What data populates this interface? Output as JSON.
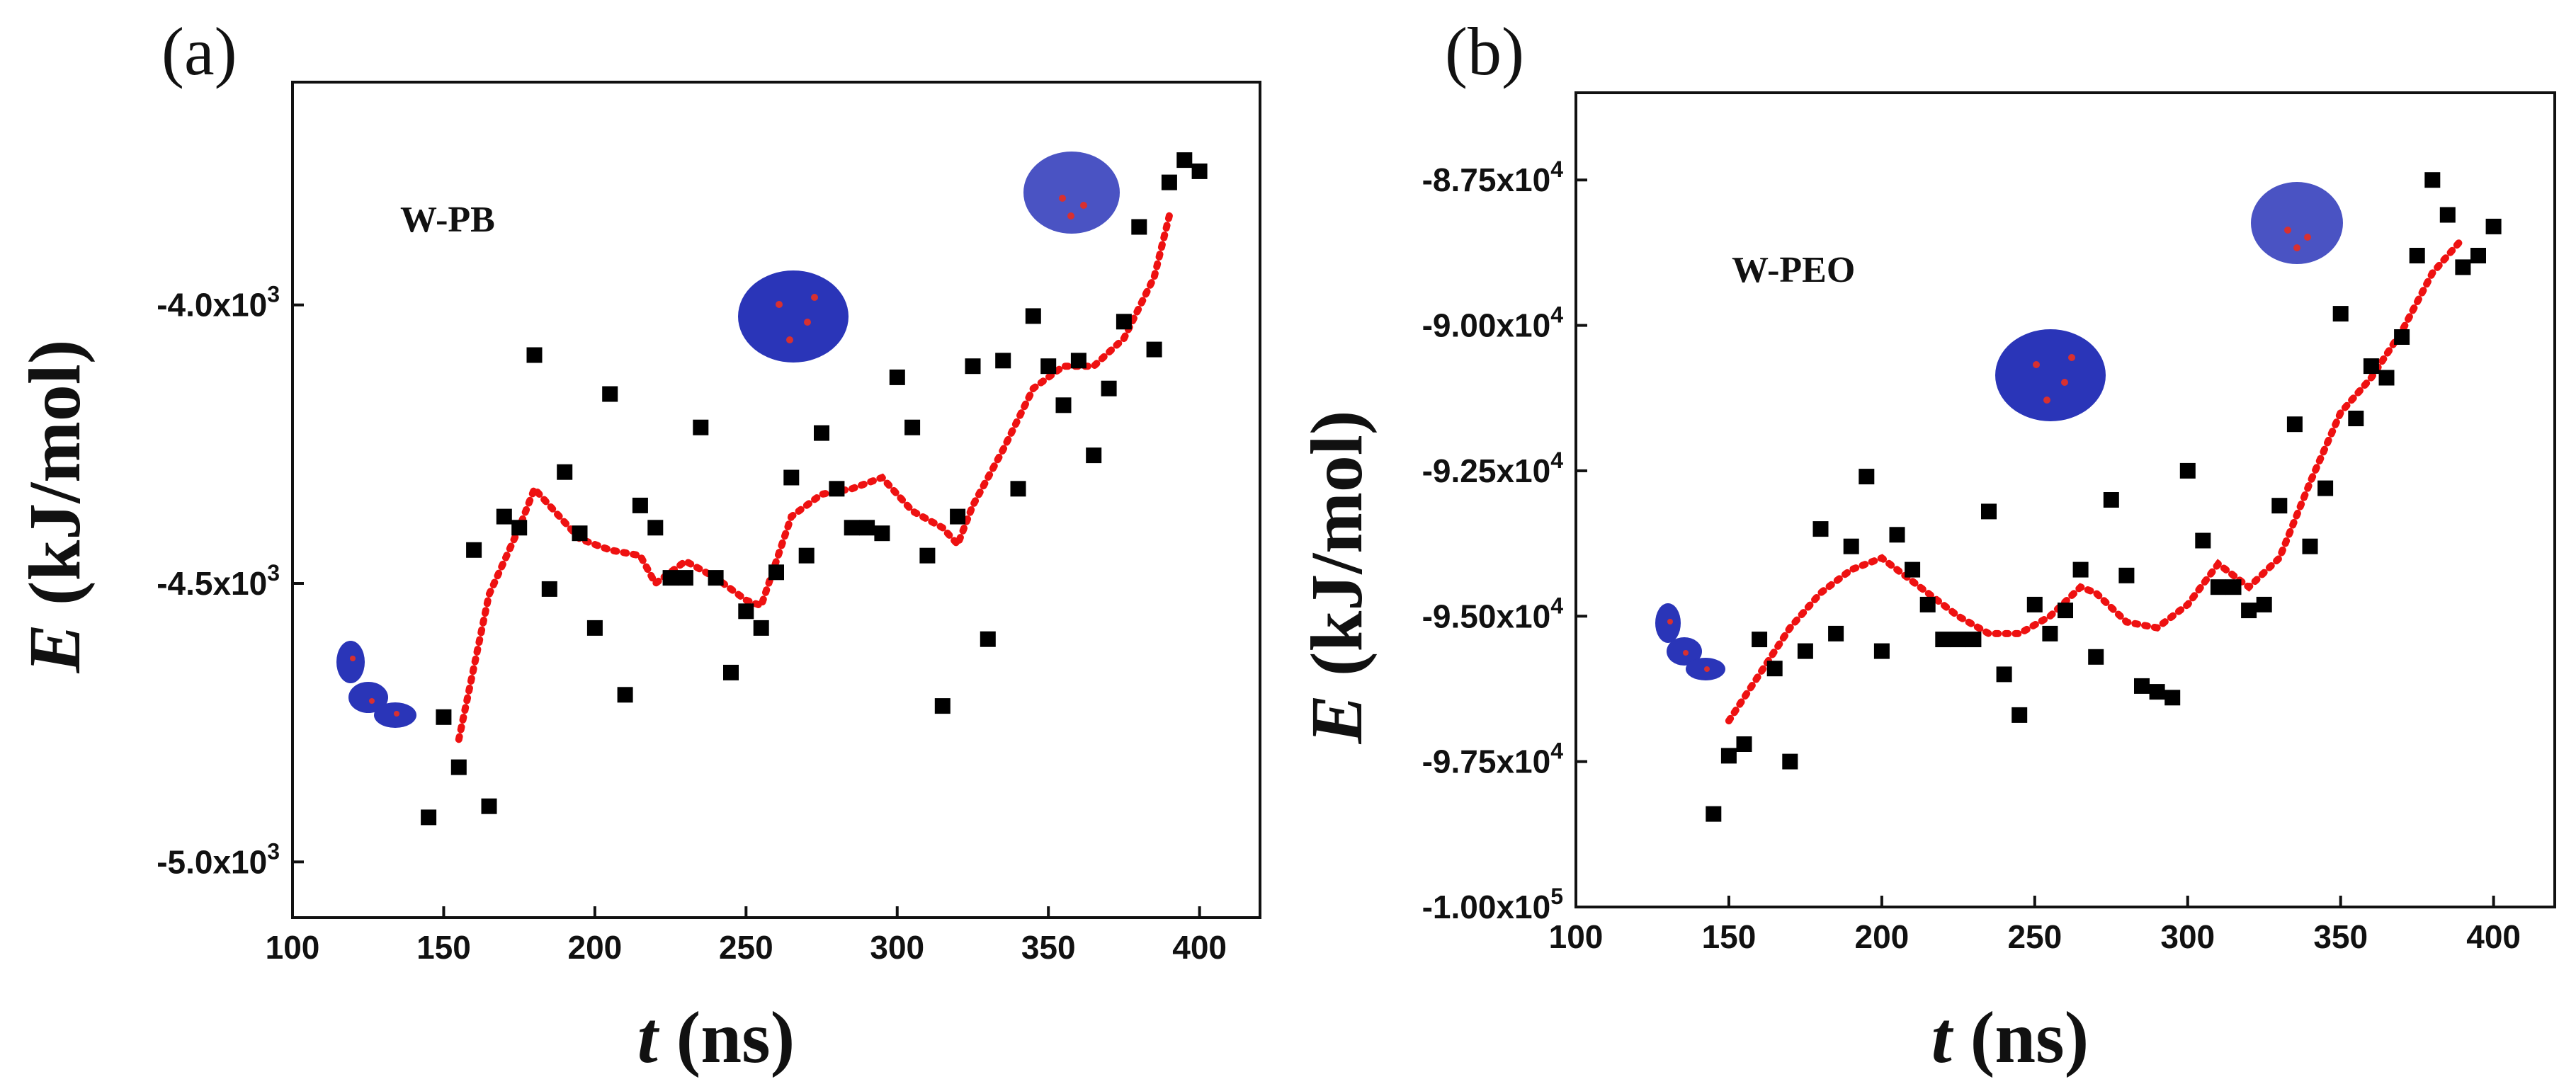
{
  "chart_data": [
    {
      "type": "scatter",
      "panel_label": "(a)",
      "sample_label": "W-PB",
      "xlabel": "t (ns)",
      "ylabel": "E (kJ/mol)",
      "xlim": [
        100,
        420
      ],
      "ylim": [
        -5100,
        -3600
      ],
      "xticks": [
        100,
        150,
        200,
        250,
        300,
        350,
        400
      ],
      "xtick_labels": [
        "100",
        "150",
        "200",
        "250",
        "300",
        "350",
        "400"
      ],
      "yticks": [
        -5000,
        -4500,
        -4000
      ],
      "ytick_labels": [
        {
          "mantissa": "-5.0x10",
          "exp": "3"
        },
        {
          "mantissa": "-4.5x10",
          "exp": "3"
        },
        {
          "mantissa": "-4.0x10",
          "exp": "3"
        }
      ],
      "series": [
        {
          "name": "E",
          "x": [
            145,
            150,
            155,
            160,
            165,
            170,
            175,
            180,
            185,
            190,
            195,
            200,
            205,
            210,
            215,
            220,
            225,
            230,
            235,
            240,
            245,
            250,
            255,
            260,
            265,
            270,
            275,
            280,
            285,
            290,
            295,
            300,
            305,
            310,
            315,
            320,
            325,
            330,
            335,
            340,
            345,
            350,
            355,
            360,
            365,
            370,
            375,
            380,
            385,
            390,
            395,
            400
          ],
          "y": [
            -4920,
            -4740,
            -4830,
            -4440,
            -4900,
            -4380,
            -4400,
            -4090,
            -4510,
            -4300,
            -4410,
            -4580,
            -4160,
            -4700,
            -4360,
            -4400,
            -4490,
            -4490,
            -4220,
            -4490,
            -4660,
            -4550,
            -4580,
            -4480,
            -4310,
            -4450,
            -4230,
            -4330,
            -4400,
            -4400,
            -4410,
            -4130,
            -4220,
            -4450,
            -4720,
            -4380,
            -4110,
            -4600,
            -4100,
            -4330,
            -4020,
            -4110,
            -4180,
            -4100,
            -4270,
            -4150,
            -4030,
            -3860,
            -4080,
            -3780,
            -3740,
            -3760
          ]
        },
        {
          "name": "smoothed",
          "style": "dotted",
          "x": [
            155,
            165,
            175,
            180,
            185,
            195,
            205,
            215,
            220,
            230,
            240,
            250,
            255,
            265,
            275,
            285,
            295,
            305,
            315,
            320,
            325,
            335,
            345,
            355,
            365,
            375,
            385,
            390
          ],
          "y": [
            -4780,
            -4520,
            -4400,
            -4330,
            -4360,
            -4420,
            -4440,
            -4450,
            -4500,
            -4460,
            -4490,
            -4530,
            -4540,
            -4380,
            -4340,
            -4330,
            -4310,
            -4370,
            -4400,
            -4430,
            -4360,
            -4260,
            -4150,
            -4110,
            -4110,
            -4060,
            -3950,
            -3840
          ]
        }
      ]
    },
    {
      "type": "scatter",
      "panel_label": "(b)",
      "sample_label": "W-PEO",
      "xlabel": "t (ns)",
      "ylabel": "E (kJ/mol)",
      "xlim": [
        100,
        420
      ],
      "ylim": [
        -100000,
        -86000
      ],
      "xticks": [
        100,
        150,
        200,
        250,
        300,
        350,
        400
      ],
      "xtick_labels": [
        "100",
        "150",
        "200",
        "250",
        "300",
        "350",
        "400"
      ],
      "yticks": [
        -100000,
        -97500,
        -95000,
        -92500,
        -90000,
        -87500
      ],
      "ytick_labels": [
        {
          "mantissa": "-1.00x10",
          "exp": "5"
        },
        {
          "mantissa": "-9.75x10",
          "exp": "4"
        },
        {
          "mantissa": "-9.50x10",
          "exp": "4"
        },
        {
          "mantissa": "-9.25x10",
          "exp": "4"
        },
        {
          "mantissa": "-9.00x10",
          "exp": "4"
        },
        {
          "mantissa": "-8.75x10",
          "exp": "4"
        }
      ],
      "series": [
        {
          "name": "E",
          "x": [
            145,
            150,
            155,
            160,
            165,
            170,
            175,
            180,
            185,
            190,
            195,
            200,
            205,
            210,
            215,
            220,
            225,
            230,
            235,
            240,
            245,
            250,
            255,
            260,
            265,
            270,
            275,
            280,
            285,
            290,
            295,
            300,
            305,
            310,
            315,
            320,
            325,
            330,
            335,
            340,
            345,
            350,
            355,
            360,
            365,
            370,
            375,
            380,
            385,
            390,
            395,
            400
          ],
          "y": [
            -98400,
            -97400,
            -97200,
            -95400,
            -95900,
            -97500,
            -95600,
            -93500,
            -95300,
            -93800,
            -92600,
            -95600,
            -93600,
            -94200,
            -94800,
            -95400,
            -95400,
            -95400,
            -93200,
            -96000,
            -96700,
            -94800,
            -95300,
            -94900,
            -94200,
            -95700,
            -93000,
            -94300,
            -96200,
            -96300,
            -96400,
            -92500,
            -93700,
            -94500,
            -94500,
            -94900,
            -94800,
            -93100,
            -91700,
            -93800,
            -92800,
            -89800,
            -91600,
            -90700,
            -90900,
            -90200,
            -88800,
            -87500,
            -88100,
            -89000,
            -88800,
            -88300
          ]
        },
        {
          "name": "smoothed",
          "style": "dotted",
          "x": [
            150,
            160,
            170,
            180,
            190,
            200,
            205,
            215,
            225,
            235,
            245,
            255,
            265,
            270,
            280,
            290,
            300,
            310,
            320,
            330,
            340,
            350,
            360,
            370,
            380,
            390
          ],
          "y": [
            -96800,
            -96000,
            -95200,
            -94600,
            -94200,
            -94000,
            -94200,
            -94600,
            -95000,
            -95300,
            -95300,
            -95000,
            -94500,
            -94600,
            -95100,
            -95200,
            -94800,
            -94100,
            -94500,
            -94000,
            -92700,
            -91500,
            -90900,
            -90100,
            -89100,
            -88500
          ]
        }
      ]
    }
  ]
}
